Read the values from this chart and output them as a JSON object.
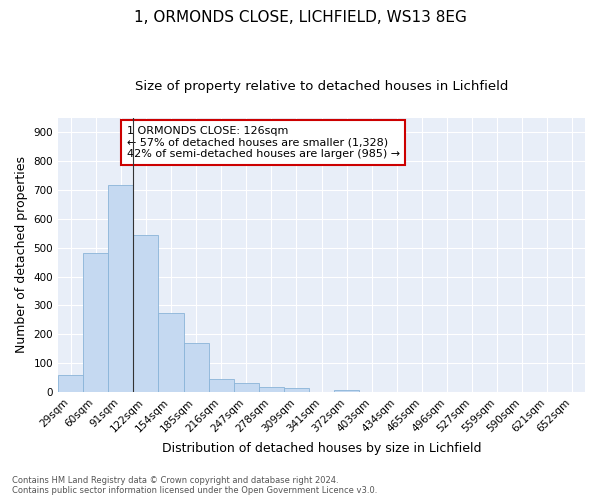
{
  "title1": "1, ORMONDS CLOSE, LICHFIELD, WS13 8EG",
  "title2": "Size of property relative to detached houses in Lichfield",
  "xlabel": "Distribution of detached houses by size in Lichfield",
  "ylabel": "Number of detached properties",
  "categories": [
    "29sqm",
    "60sqm",
    "91sqm",
    "122sqm",
    "154sqm",
    "185sqm",
    "216sqm",
    "247sqm",
    "278sqm",
    "309sqm",
    "341sqm",
    "372sqm",
    "403sqm",
    "434sqm",
    "465sqm",
    "496sqm",
    "527sqm",
    "559sqm",
    "590sqm",
    "621sqm",
    "652sqm"
  ],
  "values": [
    60,
    480,
    718,
    543,
    272,
    170,
    46,
    32,
    18,
    14,
    0,
    8,
    0,
    0,
    0,
    0,
    0,
    0,
    0,
    0,
    0
  ],
  "bar_color": "#c5d9f1",
  "bar_edge_color": "#8ab4d8",
  "annotation_box_text": "1 ORMONDS CLOSE: 126sqm\n← 57% of detached houses are smaller (1,328)\n42% of semi-detached houses are larger (985) →",
  "annotation_box_color": "#ffffff",
  "annotation_box_edge_color": "#cc0000",
  "vline_color": "#333333",
  "footnote": "Contains HM Land Registry data © Crown copyright and database right 2024.\nContains public sector information licensed under the Open Government Licence v3.0.",
  "ylim": [
    0,
    950
  ],
  "yticks": [
    0,
    100,
    200,
    300,
    400,
    500,
    600,
    700,
    800,
    900
  ],
  "fig_background_color": "#ffffff",
  "plot_background_color": "#e8eef8",
  "grid_color": "#ffffff",
  "title1_fontsize": 11,
  "title2_fontsize": 9.5,
  "tick_fontsize": 7.5,
  "ylabel_fontsize": 9,
  "xlabel_fontsize": 9,
  "ann_fontsize": 8
}
